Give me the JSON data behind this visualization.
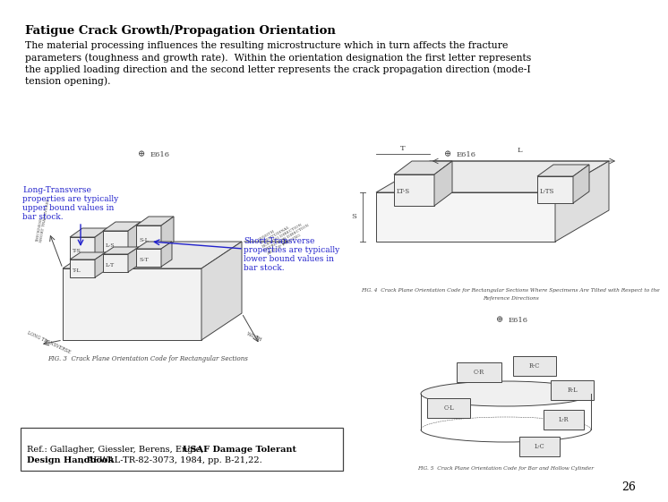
{
  "title": "Fatigue Crack Growth/Propagation Orientation",
  "body_line1": "The material processing influences the resulting microstructure which in turn affects the fracture",
  "body_line2": "parameters (toughness and growth rate).  Within the orientation designation the first letter represents",
  "body_line3": "the applied loading direction and the second letter represents the crack propagation direction (mode-I",
  "body_line4": "tension opening).",
  "ann_left_line1": "Long-Transverse",
  "ann_left_line2": "properties are typically",
  "ann_left_line3": "upper bound values in",
  "ann_left_line4": "bar stock.",
  "ann_right_line1": "Short-Transverse",
  "ann_right_line2": "properties are typically",
  "ann_right_line3": "lower bound values in",
  "ann_right_line4": "bar stock.",
  "fig3_label": "E616",
  "fig3_caption": "FIG. 3  Crack Plane Orientation Code for Rectangular Sections",
  "fig4_label": "E616",
  "fig4_caption_line1": "FIG. 4  Crack Plane Orientation Code for Rectangular Sections Where Specimens Are Tilted with Respect to the",
  "fig4_caption_line2": "Reference Directions",
  "fig5_label": "E616",
  "fig5_caption": "FIG. 5  Crack Plane Orientation Code for Bar and Hollow Cylinder",
  "ref_line1_normal": "Ref.: Gallagher, Giessler, Berens, Engle,  ",
  "ref_line1_bold": "USAF Damage Tolerant",
  "ref_line2_bold": "Design Handbook",
  "ref_line2_normal": ", AFWAL-TR-82-3073, 1984, pp. B-21,22.",
  "page_number": "26",
  "bg_color": "#ffffff",
  "text_color": "#000000",
  "blue_color": "#2222cc",
  "draw_color": "#444444",
  "title_fontsize": 9.5,
  "body_fontsize": 7.8,
  "ann_fontsize": 6.5,
  "cap_fontsize": 5.0,
  "ref_fontsize": 7.0
}
